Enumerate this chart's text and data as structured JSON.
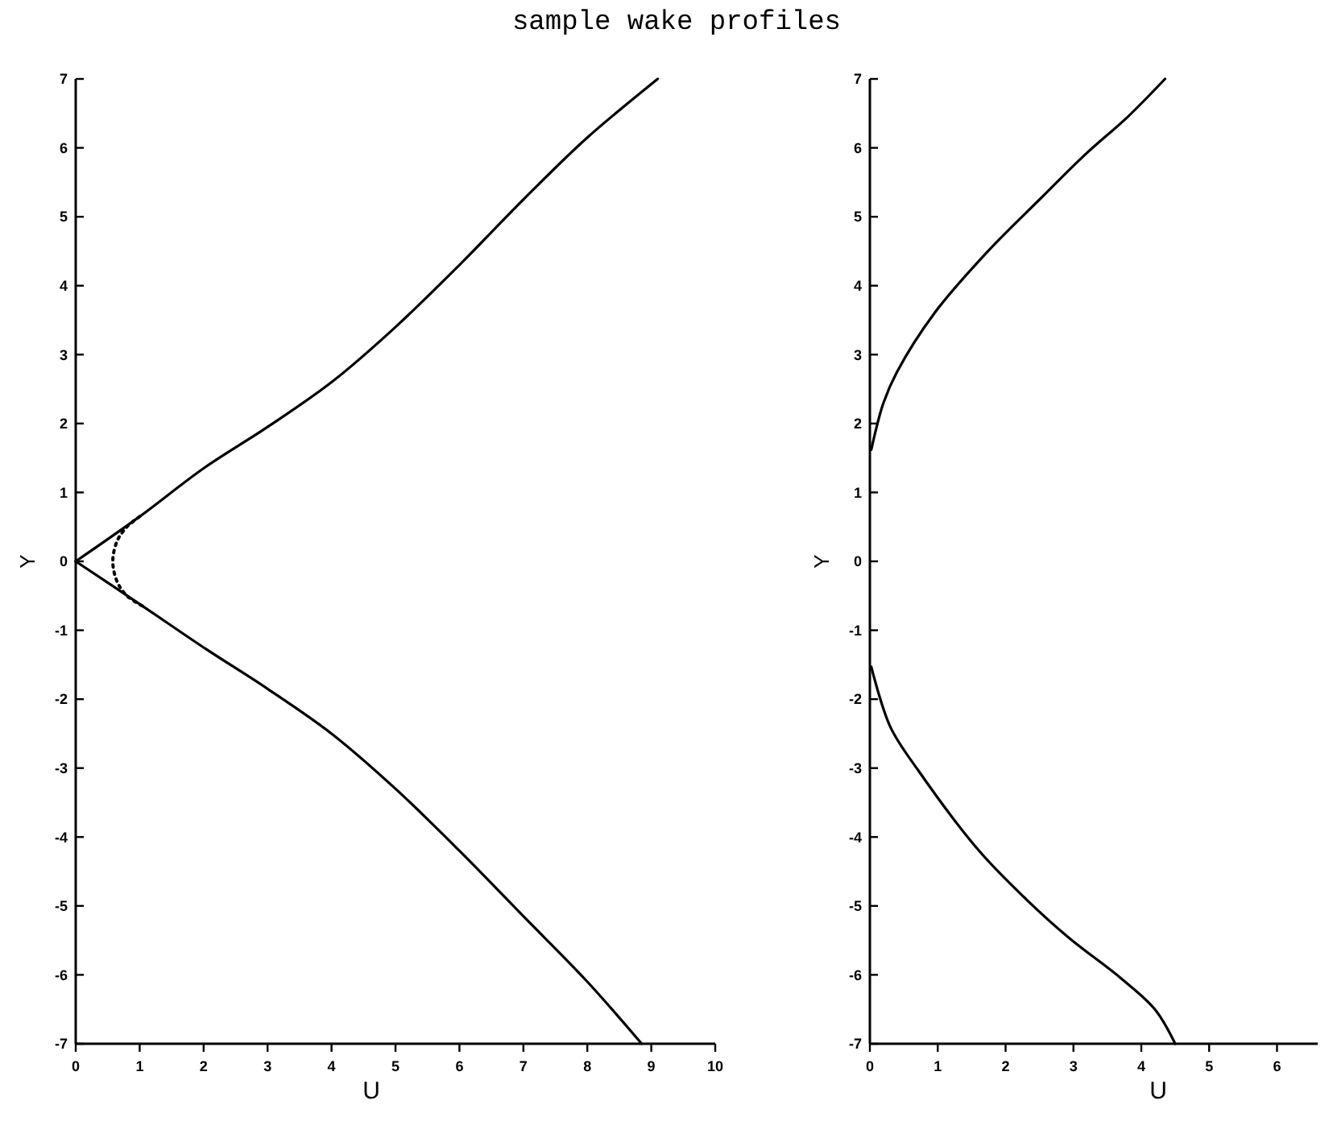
{
  "chart_data": [
    {
      "type": "line",
      "title": "sample wake profiles",
      "xlabel": "U",
      "ylabel": "Y",
      "xlim": [
        0,
        10
      ],
      "ylim": [
        -7,
        7
      ],
      "xticks": [
        0,
        1,
        2,
        3,
        4,
        5,
        6,
        7,
        8,
        9,
        10
      ],
      "yticks": [
        -7,
        -6,
        -5,
        -4,
        -3,
        -2,
        -1,
        0,
        1,
        2,
        3,
        4,
        5,
        6,
        7
      ],
      "series": [
        {
          "color": "#000000",
          "line_style": "solid",
          "x": [
            0,
            1,
            2,
            3,
            4,
            5,
            6,
            7,
            8,
            9.1
          ],
          "values": [
            0,
            0.65,
            1.35,
            1.95,
            2.6,
            3.4,
            4.3,
            5.25,
            6.15,
            7
          ]
        },
        {
          "color": "#000000",
          "line_style": "solid",
          "x": [
            0,
            1,
            2,
            3,
            4,
            5,
            6,
            7,
            8,
            8.85
          ],
          "values": [
            0,
            -0.62,
            -1.25,
            -1.85,
            -2.5,
            -3.3,
            -4.2,
            -5.15,
            -6.1,
            -7
          ]
        },
        {
          "color": "#000000",
          "line_style": "dotted",
          "x": [
            1,
            0.8,
            0.65,
            0.58,
            0.65,
            0.8,
            1.05
          ],
          "values": [
            0.65,
            0.5,
            0.3,
            0,
            -0.3,
            -0.5,
            -0.65
          ]
        }
      ]
    },
    {
      "type": "line",
      "xlabel": "U",
      "ylabel": "Y",
      "xlim": [
        0,
        6.6
      ],
      "ylim": [
        -7,
        7
      ],
      "xticks": [
        0,
        1,
        2,
        3,
        4,
        5,
        6
      ],
      "yticks": [
        -7,
        -6,
        -5,
        -4,
        -3,
        -2,
        -1,
        0,
        1,
        2,
        3,
        4,
        5,
        6,
        7
      ],
      "series": [
        {
          "color": "#000000",
          "line_style": "solid",
          "x": [
            0.02,
            0.2,
            0.4,
            0.95,
            1.74,
            2.5,
            3.17,
            3.8,
            4.35
          ],
          "values": [
            1.62,
            2.3,
            2.75,
            3.6,
            4.5,
            5.25,
            5.9,
            6.45,
            7
          ]
        },
        {
          "color": "#000000",
          "line_style": "solid",
          "x": [
            0.02,
            0.3,
            0.71,
            1.6,
            2.3,
            2.93,
            3.7,
            4.2,
            4.5
          ],
          "values": [
            -1.53,
            -2.4,
            -3.03,
            -4.19,
            -4.9,
            -5.46,
            -6.05,
            -6.5,
            -7
          ]
        }
      ]
    }
  ]
}
